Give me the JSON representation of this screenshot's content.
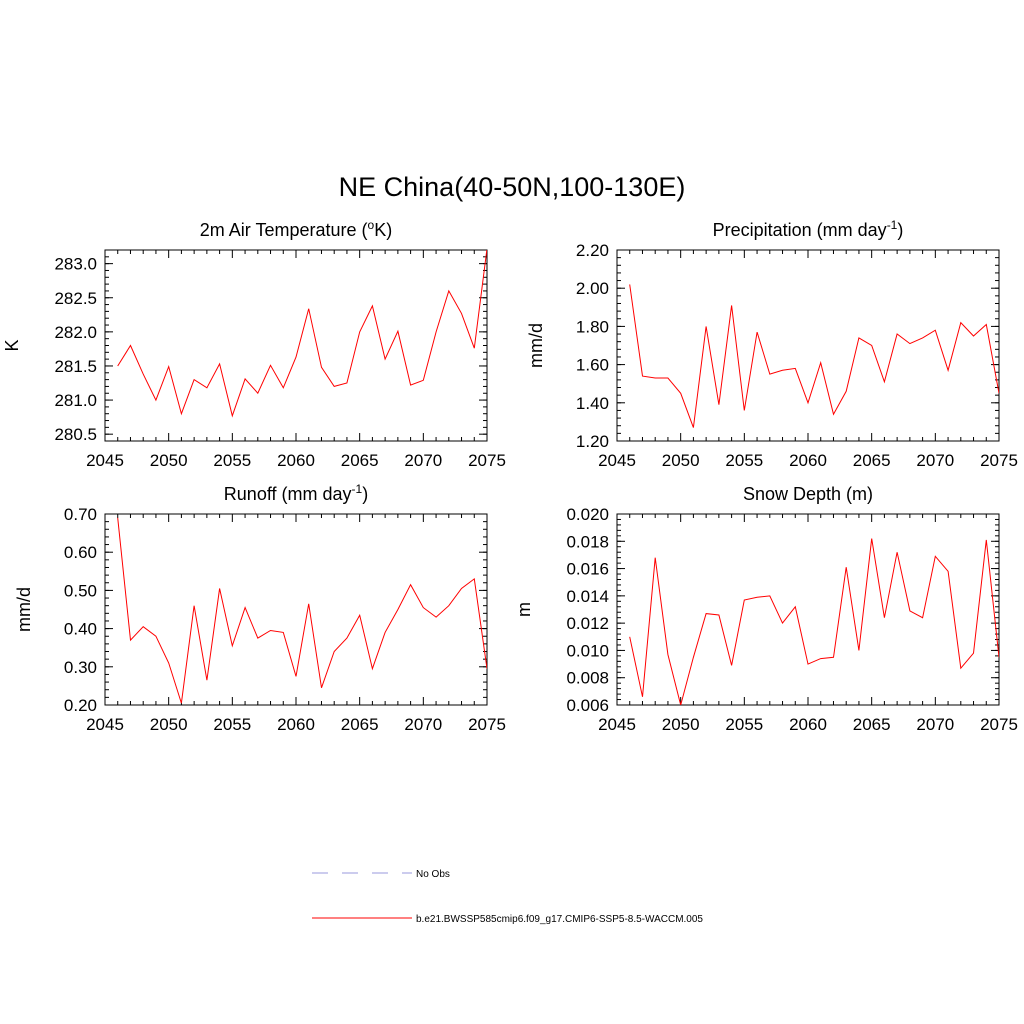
{
  "figure": {
    "title": "NE China(40-50N,100-130E)"
  },
  "legend": {
    "items": [
      {
        "label": "No Obs",
        "color": "#9999dd",
        "dash": true
      },
      {
        "label": "b.e21.BWSSP585cmip6.f09_g17.CMIP6-SSP5-8.5-WACCM.005",
        "color": "#ff0000",
        "dash": false
      }
    ]
  },
  "colors": {
    "series": "#ff0000",
    "axis": "#000000"
  },
  "chart_data": [
    {
      "type": "line",
      "title": "2m Air Temperature (°K)",
      "title_parts": [
        "2m Air Temperature (",
        "o",
        "K)"
      ],
      "ylabel": "K",
      "xlim": [
        2045,
        2075
      ],
      "ylim": [
        280.4,
        283.2
      ],
      "xticks": [
        2045,
        2050,
        2055,
        2060,
        2065,
        2070,
        2075
      ],
      "xtick_labels": [
        "2045",
        "2050",
        "2055",
        "2060",
        "2065",
        "2070",
        "2075"
      ],
      "yticks": [
        280.5,
        281.0,
        281.5,
        282.0,
        282.5,
        283.0
      ],
      "ytick_labels": [
        "280.5",
        "281.0",
        "281.5",
        "282.0",
        "282.5",
        "283.0"
      ],
      "x": [
        2046,
        2047,
        2048,
        2049,
        2050,
        2051,
        2052,
        2053,
        2054,
        2055,
        2056,
        2057,
        2058,
        2059,
        2060,
        2061,
        2062,
        2063,
        2064,
        2065,
        2066,
        2067,
        2068,
        2069,
        2070,
        2071,
        2072,
        2073,
        2074,
        2075
      ],
      "values": [
        281.5,
        281.8,
        281.38,
        281.0,
        281.49,
        280.8,
        281.3,
        281.18,
        281.53,
        280.77,
        281.31,
        281.1,
        281.51,
        281.18,
        281.63,
        282.34,
        281.48,
        281.2,
        281.25,
        282.0,
        282.38,
        281.6,
        282.01,
        281.22,
        281.29,
        282.0,
        282.6,
        282.27,
        281.76,
        283.22
      ]
    },
    {
      "type": "line",
      "title": "Precipitation (mm day⁻¹)",
      "title_parts": [
        "Precipitation (mm day",
        "-1",
        ")"
      ],
      "ylabel": "mm/d",
      "xlim": [
        2045,
        2075
      ],
      "ylim": [
        1.2,
        2.2
      ],
      "xticks": [
        2045,
        2050,
        2055,
        2060,
        2065,
        2070,
        2075
      ],
      "xtick_labels": [
        "2045",
        "2050",
        "2055",
        "2060",
        "2065",
        "2070",
        "2075"
      ],
      "yticks": [
        1.2,
        1.4,
        1.6,
        1.8,
        2.0,
        2.2
      ],
      "ytick_labels": [
        "1.20",
        "1.40",
        "1.60",
        "1.80",
        "2.00",
        "2.20"
      ],
      "x": [
        2046,
        2047,
        2048,
        2049,
        2050,
        2051,
        2052,
        2053,
        2054,
        2055,
        2056,
        2057,
        2058,
        2059,
        2060,
        2061,
        2062,
        2063,
        2064,
        2065,
        2066,
        2067,
        2068,
        2069,
        2070,
        2071,
        2072,
        2073,
        2074,
        2075
      ],
      "values": [
        2.02,
        1.54,
        1.53,
        1.53,
        1.45,
        1.27,
        1.8,
        1.39,
        1.91,
        1.36,
        1.77,
        1.55,
        1.57,
        1.58,
        1.4,
        1.61,
        1.34,
        1.46,
        1.74,
        1.7,
        1.51,
        1.76,
        1.71,
        1.74,
        1.78,
        1.57,
        1.82,
        1.75,
        1.81,
        1.45
      ]
    },
    {
      "type": "line",
      "title": "Runoff (mm day⁻¹)",
      "title_parts": [
        "Runoff (mm day",
        "-1",
        ")"
      ],
      "ylabel": "mm/d",
      "xlim": [
        2045,
        2075
      ],
      "ylim": [
        0.2,
        0.7
      ],
      "xticks": [
        2045,
        2050,
        2055,
        2060,
        2065,
        2070,
        2075
      ],
      "xtick_labels": [
        "2045",
        "2050",
        "2055",
        "2060",
        "2065",
        "2070",
        "2075"
      ],
      "yticks": [
        0.2,
        0.3,
        0.4,
        0.5,
        0.6,
        0.7
      ],
      "ytick_labels": [
        "0.20",
        "0.30",
        "0.40",
        "0.50",
        "0.60",
        "0.70"
      ],
      "x": [
        2046,
        2047,
        2048,
        2049,
        2050,
        2051,
        2052,
        2053,
        2054,
        2055,
        2056,
        2057,
        2058,
        2059,
        2060,
        2061,
        2062,
        2063,
        2064,
        2065,
        2066,
        2067,
        2068,
        2069,
        2070,
        2071,
        2072,
        2073,
        2074,
        2075
      ],
      "values": [
        0.69,
        0.37,
        0.405,
        0.38,
        0.31,
        0.205,
        0.46,
        0.265,
        0.505,
        0.355,
        0.455,
        0.375,
        0.395,
        0.39,
        0.275,
        0.465,
        0.245,
        0.34,
        0.375,
        0.435,
        0.295,
        0.39,
        0.45,
        0.515,
        0.455,
        0.43,
        0.46,
        0.505,
        0.53,
        0.295
      ]
    },
    {
      "type": "line",
      "title": "Snow Depth (m)",
      "title_parts": [
        "Snow Depth (m)",
        "",
        ""
      ],
      "ylabel": "m",
      "xlim": [
        2045,
        2075
      ],
      "ylim": [
        0.006,
        0.02
      ],
      "xticks": [
        2045,
        2050,
        2055,
        2060,
        2065,
        2070,
        2075
      ],
      "xtick_labels": [
        "2045",
        "2050",
        "2055",
        "2060",
        "2065",
        "2070",
        "2075"
      ],
      "yticks": [
        0.006,
        0.008,
        0.01,
        0.012,
        0.014,
        0.016,
        0.018,
        0.02
      ],
      "ytick_labels": [
        "0.006",
        "0.008",
        "0.010",
        "0.012",
        "0.014",
        "0.016",
        "0.018",
        "0.020"
      ],
      "x": [
        2046,
        2047,
        2048,
        2049,
        2050,
        2051,
        2052,
        2053,
        2054,
        2055,
        2056,
        2057,
        2058,
        2059,
        2060,
        2061,
        2062,
        2063,
        2064,
        2065,
        2066,
        2067,
        2068,
        2069,
        2070,
        2071,
        2072,
        2073,
        2074,
        2075
      ],
      "values": [
        0.011,
        0.0066,
        0.0168,
        0.0097,
        0.006,
        0.0095,
        0.0127,
        0.0126,
        0.0089,
        0.0137,
        0.0139,
        0.014,
        0.012,
        0.0132,
        0.009,
        0.0094,
        0.0095,
        0.0161,
        0.01,
        0.0182,
        0.0124,
        0.0172,
        0.0129,
        0.0124,
        0.0169,
        0.0158,
        0.0087,
        0.0098,
        0.0181,
        0.0095
      ]
    }
  ]
}
